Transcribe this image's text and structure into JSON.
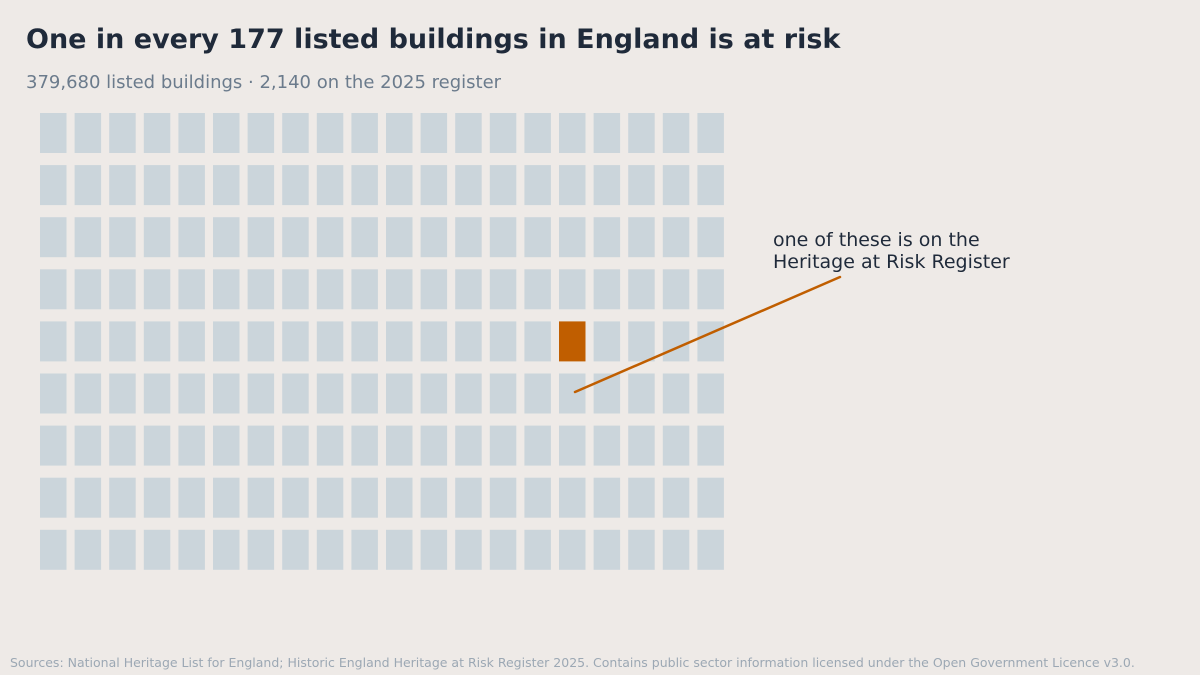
{
  "header": {
    "title": "One in every 177 listed buildings in England is at risk",
    "subtitle": "379,680 listed buildings · 2,140 on the 2025 register"
  },
  "annotation": {
    "line1": "one of these is on the",
    "line2": "Heritage at Risk Register"
  },
  "footer": {
    "source": "Sources: National Heritage List for England; Historic England Heritage at Risk Register 2025. Contains public sector information licensed under the Open Government Licence v3.0."
  },
  "chart_data": {
    "type": "waffle",
    "rows": 9,
    "cols": 20,
    "total_units": 180,
    "highlighted_units": 1,
    "highlight_position": {
      "row": 5,
      "col": 16
    },
    "colors": {
      "base": "#CBD5DB",
      "highlight": "#C05E00",
      "leader_line": "#C05E00"
    }
  }
}
